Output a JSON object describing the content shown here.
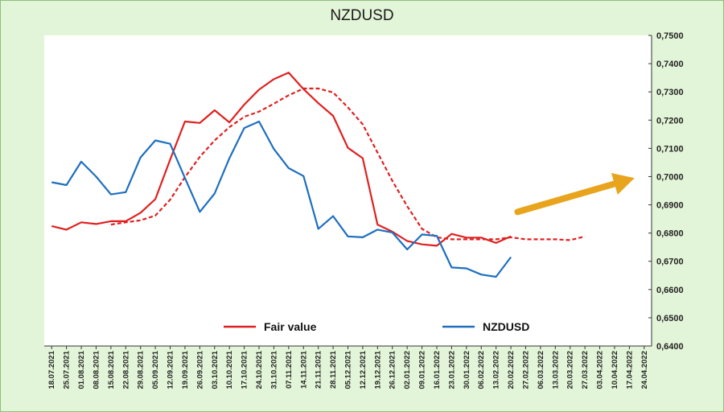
{
  "chart_data": {
    "type": "line",
    "title": "NZDUSD",
    "ylim": [
      0.64,
      0.75
    ],
    "y_ticks": [
      "0,6400",
      "0,6500",
      "0,6600",
      "0,6700",
      "0,6800",
      "0,6900",
      "0,7000",
      "0,7100",
      "0,7200",
      "0,7300",
      "0,7400",
      "0,7500"
    ],
    "categories": [
      "18.07.2021",
      "25.07.2021",
      "01.08.2021",
      "08.08.2021",
      "15.08.2021",
      "22.08.2021",
      "29.08.2021",
      "05.09.2021",
      "12.09.2021",
      "19.09.2021",
      "26.09.2021",
      "03.10.2021",
      "10.10.2021",
      "17.10.2021",
      "24.10.2021",
      "31.10.2021",
      "07.11.2021",
      "14.11.2021",
      "21.11.2021",
      "28.11.2021",
      "05.12.2021",
      "12.12.2021",
      "19.12.2021",
      "26.12.2021",
      "02.01.2022",
      "09.01.2022",
      "16.01.2022",
      "23.01.2022",
      "30.01.2022",
      "06.02.2022",
      "13.02.2022",
      "20.02.2022",
      "27.02.2022",
      "06.03.2022",
      "13.03.2022",
      "20.03.2022",
      "27.03.2022",
      "03.04.2022",
      "10.04.2022",
      "17.04.2022",
      "24.04.2022"
    ],
    "series": [
      {
        "name": "Fair value",
        "color": "#e02020",
        "style": "solid",
        "values": [
          0.6825,
          0.6812,
          0.6838,
          0.6832,
          0.6842,
          0.6842,
          0.6872,
          0.692,
          0.706,
          0.7195,
          0.719,
          0.7235,
          0.7192,
          0.7255,
          0.7308,
          0.7345,
          0.7368,
          0.731,
          0.726,
          0.7215,
          0.7102,
          0.7065,
          0.683,
          0.6805,
          0.6772,
          0.676,
          0.6755,
          0.6797,
          0.6784,
          0.6784,
          0.6765,
          0.6788,
          null,
          null,
          null,
          null,
          null,
          null,
          null,
          null,
          null
        ]
      },
      {
        "name": "",
        "color": "#e02020",
        "style": "dashed",
        "values": [
          null,
          null,
          null,
          null,
          0.683,
          0.6838,
          0.6845,
          0.6862,
          0.6918,
          0.6998,
          0.707,
          0.7128,
          0.7175,
          0.7212,
          0.723,
          0.7258,
          0.7288,
          0.7312,
          0.7312,
          0.7298,
          0.7245,
          0.7185,
          0.7085,
          0.6985,
          0.6895,
          0.6815,
          0.6785,
          0.6778,
          0.6778,
          0.6778,
          0.6778,
          0.6785,
          0.6778,
          0.6778,
          0.6778,
          0.6775,
          0.6788,
          null,
          null,
          null,
          null
        ]
      },
      {
        "name": "NZDUSD",
        "color": "#1e6fbf",
        "style": "solid",
        "values": [
          0.698,
          0.697,
          0.7053,
          0.7,
          0.6937,
          0.6945,
          0.7068,
          0.7128,
          0.7116,
          0.6995,
          0.6875,
          0.694,
          0.7065,
          0.7172,
          0.7195,
          0.7098,
          0.703,
          0.7002,
          0.6815,
          0.686,
          0.6788,
          0.6785,
          0.6812,
          0.6802,
          0.6742,
          0.6795,
          0.679,
          0.6678,
          0.6675,
          0.6653,
          0.6645,
          0.6715,
          null,
          null,
          null,
          null,
          null,
          null,
          null,
          null,
          null
        ]
      }
    ],
    "legend": {
      "placement": "bottom-center"
    },
    "annotation": {
      "type": "arrow",
      "color": "#e8a41c",
      "from": {
        "x": "27.02.2022",
        "y": 0.6875
      },
      "to": {
        "x": "24.04.2022",
        "y": 0.6995
      }
    },
    "grid": false
  }
}
